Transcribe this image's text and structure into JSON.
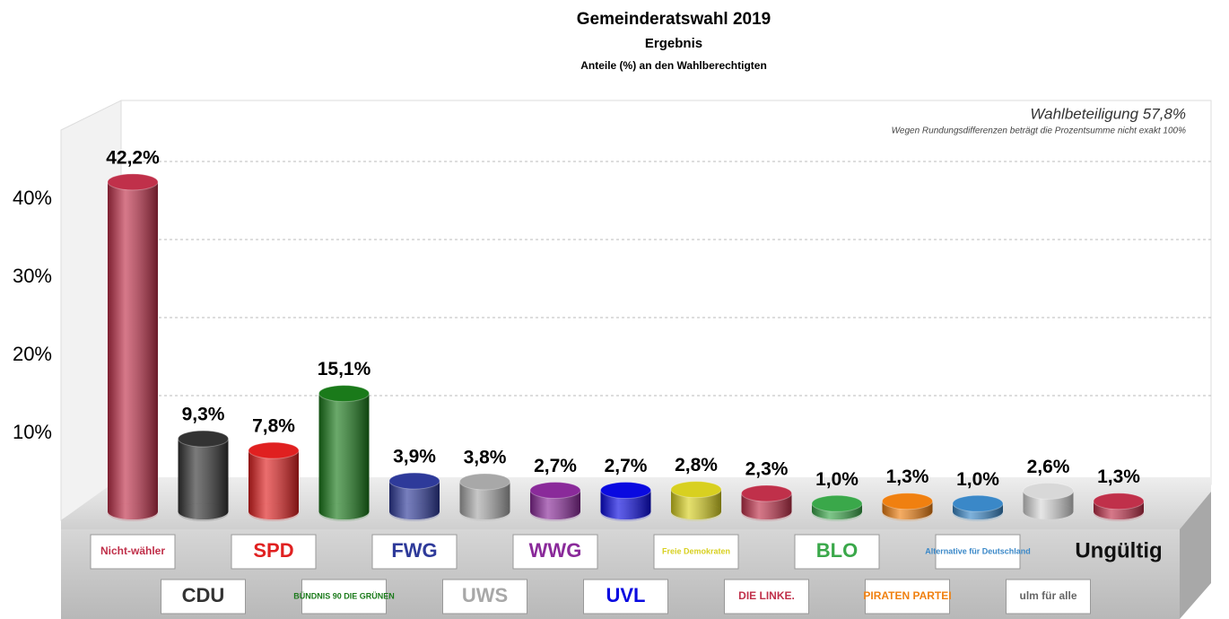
{
  "chart_data": {
    "type": "bar",
    "title": "Gemeinderatswahl 2019",
    "subtitle": "Ergebnis",
    "caption": "Anteile (%) an den Wahlberechtigten",
    "annotations": [
      "Wahlbeteiligung 57,8%",
      "Wegen Rundungsdifferenzen beträgt die Prozentsumme nicht exakt 100%"
    ],
    "categories": [
      "Nicht-wähler",
      "CDU",
      "SPD",
      "BÜNDNIS 90 DIE GRÜNEN",
      "FWG",
      "UWS",
      "WWG",
      "UVL",
      "Freie Demokraten",
      "DIE LINKE.",
      "BLO",
      "PIRATEN PARTEI",
      "Alternative für Deutschland",
      "ulm für alle",
      "Ungültig"
    ],
    "values": [
      42.2,
      9.3,
      7.8,
      15.1,
      3.9,
      3.8,
      2.7,
      2.7,
      2.8,
      2.3,
      1.0,
      1.3,
      1.0,
      2.6,
      1.3
    ],
    "value_labels": [
      "42,2%",
      "9,3%",
      "7,8%",
      "15,1%",
      "3,9%",
      "3,8%",
      "2,7%",
      "2,7%",
      "2,8%",
      "2,3%",
      "1,0%",
      "1,3%",
      "1,0%",
      "2,6%",
      "1,3%"
    ],
    "colors": [
      "#c0304a",
      "#333333",
      "#e02020",
      "#1a7a1a",
      "#2e3a9a",
      "#a8a8a8",
      "#8a2a9a",
      "#0a0ae0",
      "#d8d020",
      "#c0304a",
      "#3aa84a",
      "#f08010",
      "#3a88c8",
      "#d8d8d8",
      "#c0304a"
    ],
    "ylim": [
      0,
      50
    ],
    "yticks": [
      {
        "value": 10,
        "label": "10%"
      },
      {
        "value": 20,
        "label": "20%"
      },
      {
        "value": 30,
        "label": "30%"
      },
      {
        "value": 40,
        "label": "40%"
      }
    ],
    "grid": true
  }
}
